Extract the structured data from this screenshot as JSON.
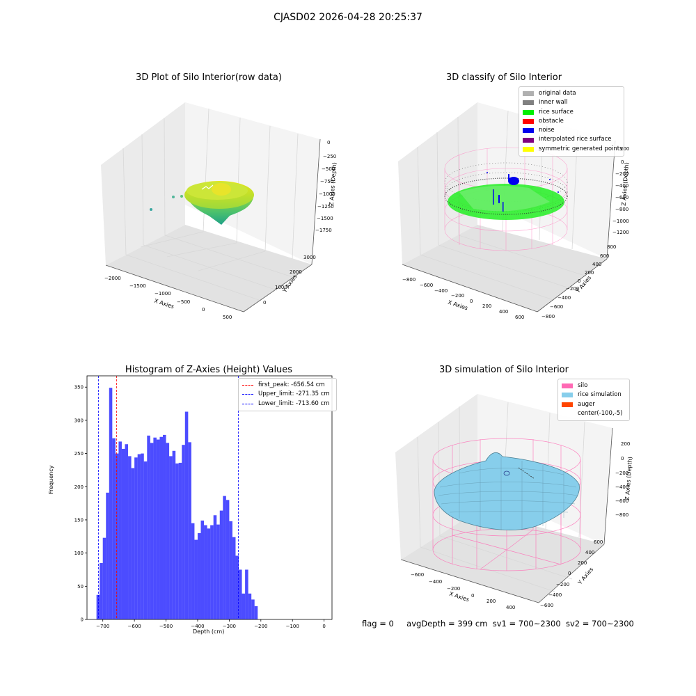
{
  "figure_title": "CJASD02 2026-04-28 20:25:37",
  "footer": {
    "flag": "flag = 0",
    "avg_depth": "avgDepth = 399 cm",
    "sv1": "sv1 = 700~2300",
    "sv2": "sv2 = 700~2300"
  },
  "chart_data": [
    {
      "type": "scatter",
      "title": "3D Plot of Silo Interior(row data)",
      "xlabel": "X Axies",
      "ylabel": "Y Axies",
      "zlabel": "Z Axies (Depth)",
      "x_ticks": [
        "−2000",
        "−1500",
        "−1000",
        "−500",
        "0",
        "500"
      ],
      "y_ticks": [
        "0",
        "1000",
        "2000",
        "3000"
      ],
      "z_ticks": [
        "0",
        "−250",
        "−500",
        "−750",
        "−1000",
        "−1250",
        "−1500",
        "−1750"
      ],
      "xlim": [
        -2200,
        700
      ],
      "ylim": [
        -500,
        3500
      ],
      "zlim": [
        -1900,
        100
      ],
      "colormap": "viridis",
      "grid": true
    },
    {
      "type": "scatter",
      "title": "3D classify of Silo Interior",
      "xlabel": "X Axies",
      "ylabel": "Y Axies",
      "zlabel": "Z Axies (Depth)",
      "x_ticks": [
        "−800",
        "−600",
        "−400",
        "−200",
        "0",
        "200",
        "400",
        "600"
      ],
      "y_ticks": [
        "−800",
        "−600",
        "−400",
        "−200",
        "0",
        "200",
        "400",
        "600",
        "800"
      ],
      "z_ticks": [
        "200",
        "0",
        "−200",
        "−400",
        "−600",
        "−800",
        "−1000",
        "−1200"
      ],
      "legend": [
        {
          "label": "original data",
          "color": "#b0b0b0"
        },
        {
          "label": "inner wall",
          "color": "#808080"
        },
        {
          "label": "rice surface",
          "color": "#00ee00"
        },
        {
          "label": "obstacle",
          "color": "#ff0000"
        },
        {
          "label": "noise",
          "color": "#0000ee"
        },
        {
          "label": "interpolated rice surface",
          "color": "#800080"
        },
        {
          "label": "symmetric generated points",
          "color": "#ffff00"
        }
      ],
      "legend_loc": "upper right",
      "wire_color": "#ff80c0",
      "grid": true
    },
    {
      "type": "bar",
      "title": "Histogram of Z-Axies (Height) Values",
      "xlabel": "Depth (cm)",
      "ylabel": "Frequency",
      "bin_width": 10,
      "bin_start": -720,
      "values": [
        37,
        85,
        123,
        191,
        349,
        273,
        250,
        268,
        257,
        264,
        246,
        228,
        244,
        249,
        250,
        238,
        277,
        266,
        274,
        271,
        275,
        278,
        266,
        246,
        254,
        235,
        236,
        263,
        313,
        267,
        145,
        120,
        130,
        149,
        142,
        137,
        142,
        157,
        143,
        164,
        186,
        180,
        148,
        124,
        96,
        75,
        39,
        75,
        39,
        30,
        20
      ],
      "color": "#0000ff",
      "alpha": 0.7,
      "xlim": [
        -750,
        25
      ],
      "ylim": [
        0,
        367
      ],
      "x_ticks": [
        -700,
        -600,
        -500,
        -400,
        -300,
        -200,
        -100,
        0
      ],
      "x_tick_labels": [
        "−700",
        "−600",
        "−500",
        "−400",
        "−300",
        "−200",
        "−100",
        "0"
      ],
      "y_ticks": [
        0,
        50,
        100,
        150,
        200,
        250,
        300,
        350
      ],
      "y_tick_labels": [
        "0",
        "50",
        "100",
        "150",
        "200",
        "250",
        "300",
        "350"
      ],
      "vlines": [
        {
          "label": "first_peak: -656.54 cm",
          "x": -656.54,
          "color": "#ff0000"
        },
        {
          "label": "Upper_limit: -271.35 cm",
          "x": -271.35,
          "color": "#0000ff"
        },
        {
          "label": "Lower_limit: -713.60 cm",
          "x": -713.6,
          "color": "#0000ff"
        }
      ],
      "legend_loc": "upper right"
    },
    {
      "type": "area",
      "title": "3D simulation of Silo Interior",
      "xlabel": "X Axies",
      "ylabel": "Y Axies",
      "zlabel": "Z Axies (Depth)",
      "x_ticks": [
        "−600",
        "−400",
        "−200",
        "0",
        "200",
        "400"
      ],
      "y_ticks": [
        "−600",
        "−400",
        "−200",
        "0",
        "200",
        "400",
        "600"
      ],
      "z_ticks": [
        "200",
        "0",
        "−200",
        "−400",
        "−600",
        "−800"
      ],
      "legend": [
        {
          "label": "silo",
          "color": "#ff69b4"
        },
        {
          "label": "rice simulation",
          "color": "#87ceeb"
        },
        {
          "label": "auger",
          "color": "#ff4500"
        },
        {
          "label": "center(-100,-5)",
          "color": ""
        }
      ],
      "legend_loc": "upper right",
      "grid": true
    }
  ]
}
